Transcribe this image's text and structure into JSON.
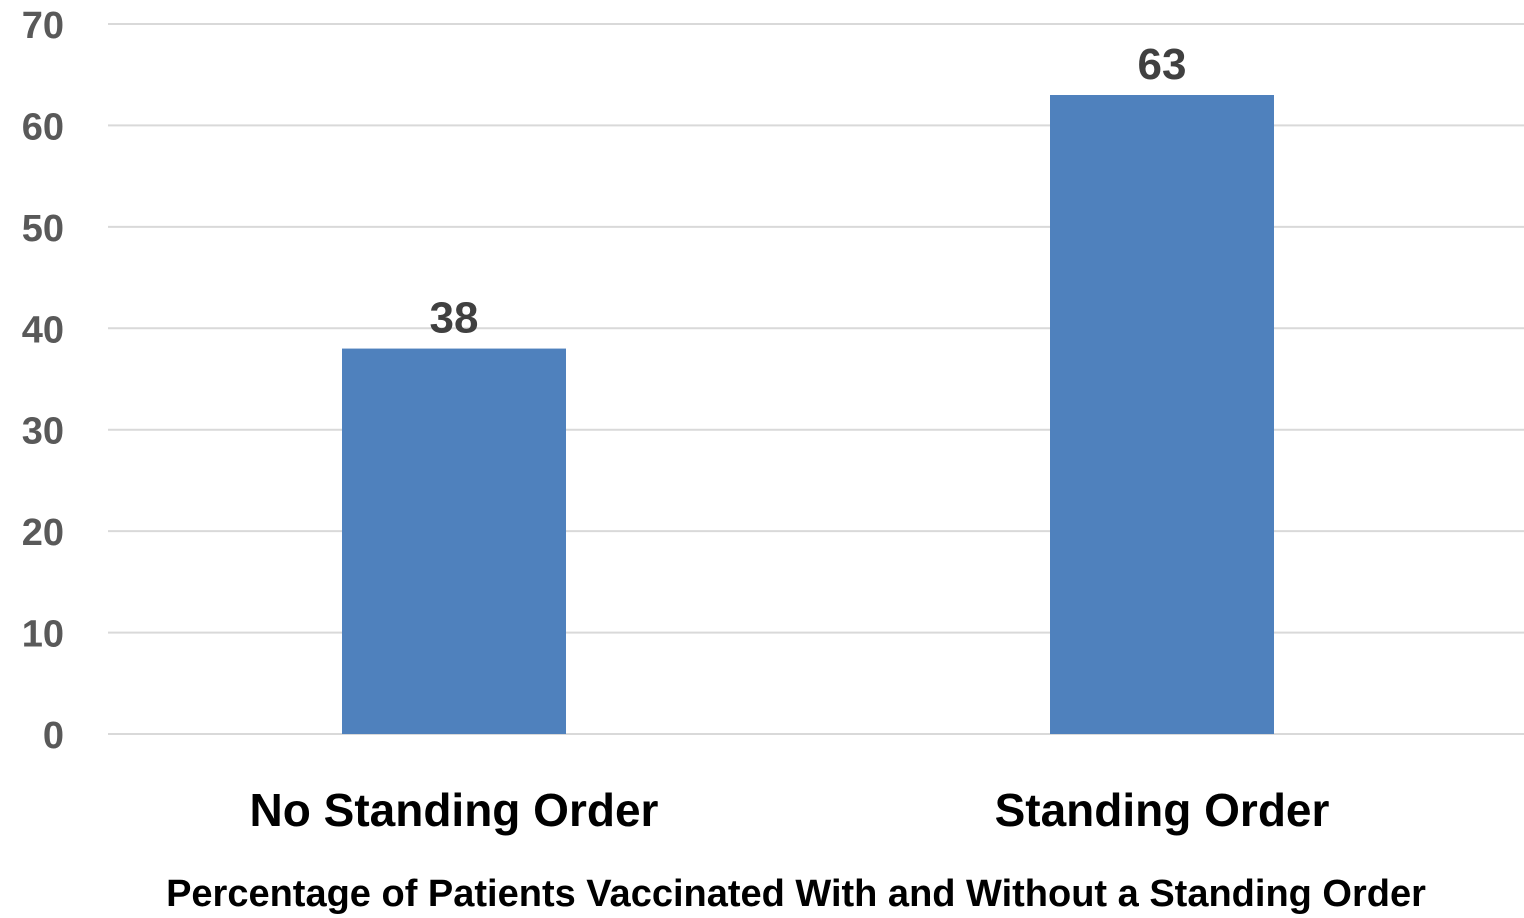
{
  "chart_data": {
    "type": "bar",
    "categories": [
      "No Standing Order",
      "Standing Order"
    ],
    "values": [
      38,
      63
    ],
    "data_labels": [
      "38",
      "63"
    ],
    "title": "",
    "xlabel": "Percentage of Patients Vaccinated With and Without a Standing Order",
    "ylabel": "",
    "ylim": [
      0,
      70
    ],
    "yticks": [
      "0",
      "10",
      "20",
      "30",
      "40",
      "50",
      "60",
      "70"
    ],
    "grid": true,
    "legend": "none",
    "bar_color": "#4f81bd"
  }
}
